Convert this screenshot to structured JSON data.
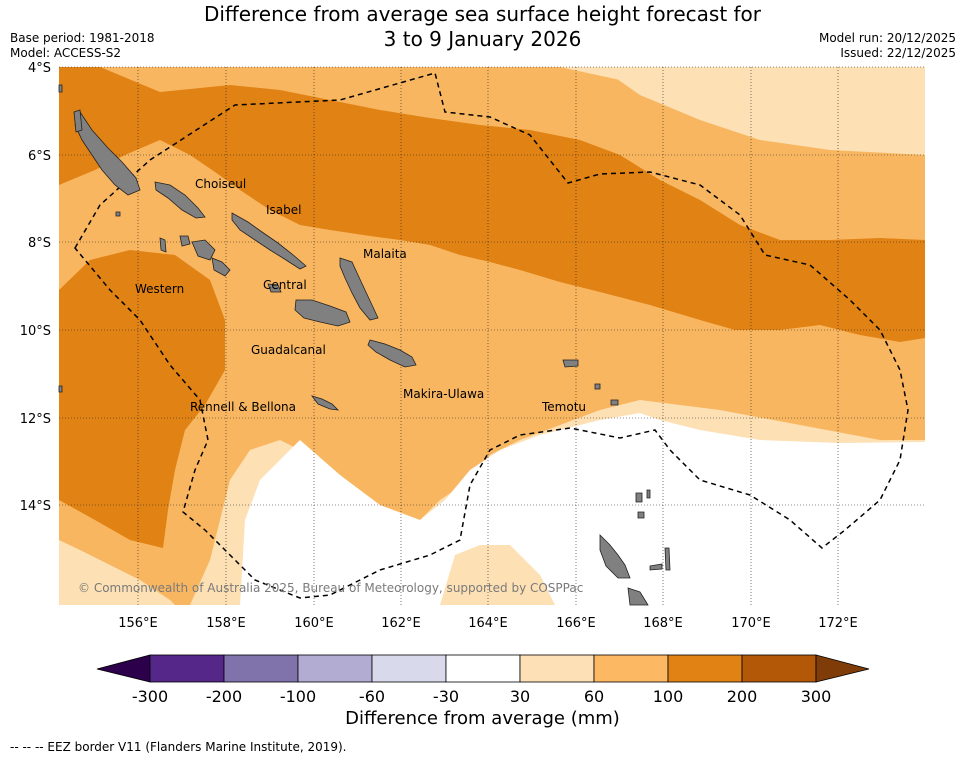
{
  "title": {
    "line1": "Difference from average sea surface height forecast for",
    "line2": "3 to 9 January 2026"
  },
  "meta": {
    "base_period": "Base period: 1981-2018",
    "model": "Model: ACCESS-S2",
    "model_run": "Model run: 20/12/2025",
    "issued": "Issued: 22/12/2025"
  },
  "map": {
    "lat_labels": [
      "4°S",
      "6°S",
      "8°S",
      "10°S",
      "12°S",
      "14°S"
    ],
    "lon_labels": [
      "156°E",
      "158°E",
      "160°E",
      "162°E",
      "164°E",
      "166°E",
      "168°E",
      "170°E",
      "172°E"
    ],
    "places": {
      "choiseul": "Choiseul",
      "isabel": "Isabel",
      "malaita": "Malaita",
      "western": "Western",
      "central": "Central",
      "guadalcanal": "Guadalcanal",
      "makira": "Makira-Ulawa",
      "rennell": "Rennell & Bellona",
      "temotu": "Temotu"
    },
    "copyright": "© Commonwealth of Australia 2025, Bureau of Meteorology, supported by COSPPac",
    "colors": {
      "c30_60": "#fde0b4",
      "c60_100": "#f9b660",
      "c100_200": "#e08214",
      "land": "#808080"
    }
  },
  "colorbar": {
    "ticks": [
      "-300",
      "-200",
      "-100",
      "-60",
      "-30",
      "30",
      "60",
      "100",
      "200",
      "300"
    ],
    "colors": [
      "#2d004b",
      "#542788",
      "#8073ac",
      "#b2abd2",
      "#d8daeb",
      "#ffffff",
      "#fee0b6",
      "#fdb863",
      "#e08214",
      "#b35806",
      "#7f3b08"
    ],
    "label": "Difference from average (mm)"
  },
  "footer": "--  --  -- EEZ border V11 (Flanders Marine Institute, 2019)."
}
